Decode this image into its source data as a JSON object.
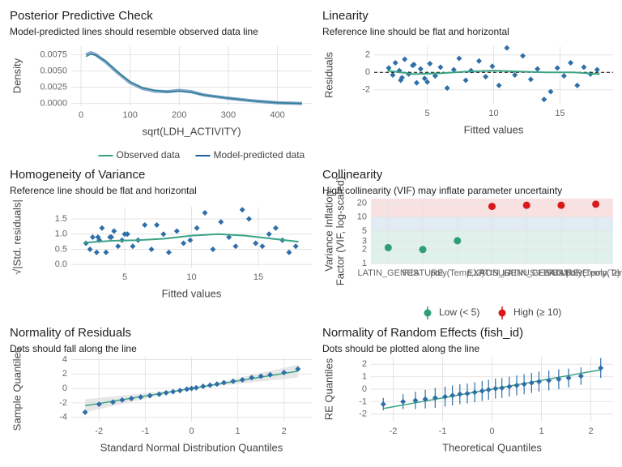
{
  "chart_data": [
    {
      "type": "line",
      "title": "Posterior Predictive Check",
      "subtitle": "Model-predicted lines should resemble observed data line",
      "xlabel": "sqrt(LDH_ACTIVITY)",
      "ylabel": "Density",
      "x": [
        10,
        20,
        30,
        50,
        75,
        100,
        125,
        150,
        175,
        200,
        225,
        250,
        300,
        350,
        400,
        450
      ],
      "series": [
        {
          "name": "Observed data",
          "color": "#3aa386",
          "values": [
            0.0072,
            0.0076,
            0.0074,
            0.0065,
            0.0048,
            0.0033,
            0.0024,
            0.002,
            0.0018,
            0.0019,
            0.0017,
            0.0013,
            0.0008,
            0.0004,
            0.0001,
            0
          ]
        },
        {
          "name": "Model-predicted data",
          "color": "#1f5fa0",
          "values": [
            0.0075,
            0.0078,
            0.0075,
            0.0064,
            0.0047,
            0.0032,
            0.0023,
            0.0019,
            0.0018,
            0.002,
            0.0018,
            0.0013,
            0.0008,
            0.0004,
            0.0001,
            0
          ]
        }
      ],
      "xlim": [
        -20,
        470
      ],
      "xticks": [
        0,
        100,
        200,
        300,
        400
      ],
      "ylim": [
        -0.0003,
        0.0088
      ],
      "yticks": [
        {
          "value": 0,
          "label": "0.0000"
        },
        {
          "value": 0.0025,
          "label": "0.0025"
        },
        {
          "value": 0.005,
          "label": "0.0050"
        },
        {
          "value": 0.0075,
          "label": "0.0075"
        }
      ],
      "grid": true
    },
    {
      "type": "scatter",
      "title": "Linearity",
      "subtitle": "Reference line should be flat and horizontal",
      "xlabel": "Fitted values",
      "ylabel": "Residuals",
      "points": {
        "color": "#2f6fa8",
        "x": [
          2.1,
          2.4,
          2.6,
          2.9,
          3.1,
          3.3,
          3.6,
          3.9,
          4.2,
          4.5,
          4.8,
          5.2,
          5.6,
          6.0,
          6.5,
          7.0,
          7.4,
          7.9,
          8.3,
          8.9,
          9.4,
          9.9,
          10.4,
          11.0,
          11.6,
          12.2,
          12.8,
          13.3,
          13.8,
          14.3,
          14.8,
          15.3,
          15.8,
          16.3,
          16.8,
          17.3,
          17.8,
          3.0,
          4.0,
          5.0
        ],
        "y": [
          0.5,
          -0.3,
          1.1,
          0.2,
          -0.6,
          1.5,
          -0.2,
          0.8,
          -1.2,
          0.4,
          -0.7,
          1.0,
          -0.4,
          0.6,
          -1.8,
          0.3,
          1.6,
          -0.9,
          0.2,
          1.3,
          -0.5,
          0.7,
          -1.5,
          2.8,
          -0.3,
          1.9,
          -0.8,
          0.4,
          -3.1,
          -2.2,
          0.5,
          -0.4,
          1.1,
          -1.5,
          0.6,
          -0.2,
          0.3,
          -0.9,
          0.9,
          -1.1
        ]
      },
      "smooth": {
        "color": "#3aa386",
        "x": [
          2,
          4,
          6,
          8,
          10,
          12,
          14,
          16,
          18
        ],
        "y": [
          0.2,
          -0.2,
          -0.1,
          0.1,
          0.2,
          0.1,
          0,
          0,
          -0.2
        ]
      },
      "reference_line": 0,
      "xlim": [
        1,
        19
      ],
      "xticks": [
        5,
        10,
        15
      ],
      "ylim": [
        -3.6,
        3
      ],
      "yticks": [
        -2,
        0,
        2
      ],
      "grid": true
    },
    {
      "type": "scatter",
      "title": "Homogeneity of Variance",
      "subtitle": "Reference line should be flat and horizontal",
      "xlabel": "Fitted values",
      "ylabel": "√|Std. residuals|",
      "points": {
        "color": "#2f6fa8",
        "x": [
          2.1,
          2.4,
          2.6,
          2.9,
          3.1,
          3.3,
          3.6,
          3.9,
          4.2,
          4.5,
          4.8,
          5.2,
          5.6,
          6.0,
          6.5,
          7.0,
          7.4,
          7.9,
          8.3,
          8.9,
          9.4,
          9.9,
          10.4,
          11.0,
          11.6,
          12.2,
          12.8,
          13.3,
          13.8,
          14.3,
          14.8,
          15.3,
          15.8,
          16.3,
          16.8,
          17.3,
          17.8,
          3.0,
          4.0,
          5.0
        ],
        "y": [
          0.7,
          0.5,
          0.9,
          0.4,
          0.8,
          1.2,
          0.4,
          0.9,
          1.1,
          0.6,
          0.8,
          1.0,
          0.6,
          0.8,
          1.3,
          0.5,
          1.3,
          1.0,
          0.4,
          1.1,
          0.7,
          0.8,
          1.2,
          1.7,
          0.5,
          1.4,
          0.9,
          0.6,
          1.8,
          1.5,
          0.7,
          0.6,
          1.0,
          1.2,
          0.8,
          0.4,
          0.6,
          0.9,
          0.9,
          1.0
        ]
      },
      "smooth": {
        "color": "#3aa386",
        "x": [
          2,
          4,
          6,
          8,
          10,
          12,
          14,
          16,
          18
        ],
        "y": [
          0.72,
          0.78,
          0.8,
          0.85,
          0.95,
          1.0,
          0.95,
          0.85,
          0.75
        ]
      },
      "xlim": [
        1,
        19
      ],
      "xticks": [
        5,
        10,
        15
      ],
      "ylim": [
        -0.1,
        1.9
      ],
      "yticks": [
        {
          "value": 0,
          "label": "0.0"
        },
        {
          "value": 0.5,
          "label": "0.5"
        },
        {
          "value": 1,
          "label": "1.0"
        },
        {
          "value": 1.5,
          "label": "1.5"
        }
      ],
      "grid": true
    },
    {
      "type": "dotplot",
      "title": "Collinearity",
      "subtitle": "High collinearity (VIF) may inflate parameter uncertainty",
      "ylabel": [
        "Variance Inflation",
        "Factor (VIF, log-scaled)"
      ],
      "categories": [
        "LATIN_GENUS",
        "FEATURE",
        "poly(Temp, 2)",
        "EXPOSURE",
        "LATIN_GENUS:FEATURE",
        "LATIN_GENUS:poly(Temp, 2)",
        "FEATURE:poly(Temp, 2)"
      ],
      "series": [
        {
          "name": "Low (< 5)",
          "color": "#2e9e7a",
          "values": [
            2.2,
            2.0,
            3.1,
            null,
            null,
            null,
            null
          ]
        },
        {
          "name": "High (≥ 10)",
          "color": "#d7191c",
          "values": [
            null,
            null,
            null,
            17,
            18,
            18,
            19
          ]
        }
      ],
      "zones": [
        {
          "to": 5,
          "color": "#d8eee6"
        },
        {
          "to": 10,
          "color": "#d8e6f0"
        },
        {
          "color": "#f7dada"
        }
      ],
      "log_y": true,
      "ylim": [
        1,
        25
      ],
      "yticks": [
        1,
        2,
        3,
        5,
        10,
        20
      ],
      "grid": true
    },
    {
      "type": "qq",
      "title": "Normality of Residuals",
      "subtitle": "Dots should fall along the line",
      "xlabel": "Standard Normal Distribution Quantiles",
      "ylabel": "Sample Quantiles",
      "points": {
        "color": "#2f6fa8",
        "x": [
          -2.3,
          -2.0,
          -1.7,
          -1.5,
          -1.3,
          -1.1,
          -0.9,
          -0.7,
          -0.55,
          -0.4,
          -0.25,
          -0.1,
          0,
          0.1,
          0.25,
          0.4,
          0.55,
          0.7,
          0.9,
          1.1,
          1.3,
          1.5,
          1.7,
          2.0,
          2.3
        ],
        "y": [
          -3.3,
          -2.2,
          -1.9,
          -1.6,
          -1.4,
          -1.2,
          -1.0,
          -0.8,
          -0.6,
          -0.45,
          -0.3,
          -0.1,
          0,
          0.1,
          0.3,
          0.45,
          0.6,
          0.8,
          1.0,
          1.2,
          1.5,
          1.7,
          1.9,
          2.2,
          2.7
        ]
      },
      "reference": {
        "color": "#3aa386",
        "x": [
          -2.3,
          2.3
        ],
        "y": [
          -2.4,
          2.4
        ]
      },
      "xlim": [
        -2.6,
        2.6
      ],
      "xticks": [
        -2,
        -1,
        0,
        1,
        2
      ],
      "ylim": [
        -4.6,
        4.4
      ],
      "yticks": [
        -4,
        -2,
        0,
        2,
        4
      ],
      "grid": true
    },
    {
      "type": "qq",
      "title": "Normality of Random Effects (fish_id)",
      "subtitle": "Dots should be plotted along the line",
      "xlabel": "Theoretical Quantiles",
      "ylabel": "RE Quantiles",
      "points": {
        "color": "#2f6fa8",
        "x": [
          -2.2,
          -1.8,
          -1.55,
          -1.35,
          -1.15,
          -0.95,
          -0.8,
          -0.65,
          -0.5,
          -0.35,
          -0.2,
          -0.07,
          0.07,
          0.2,
          0.35,
          0.5,
          0.65,
          0.8,
          0.95,
          1.15,
          1.35,
          1.55,
          1.8,
          2.2
        ],
        "y": [
          -1.2,
          -1.0,
          -0.9,
          -0.8,
          -0.7,
          -0.6,
          -0.5,
          -0.4,
          -0.35,
          -0.25,
          -0.15,
          -0.05,
          0.05,
          0.1,
          0.2,
          0.3,
          0.4,
          0.5,
          0.6,
          0.7,
          0.8,
          0.9,
          1.05,
          1.7
        ],
        "error": [
          0.5,
          0.6,
          0.7,
          0.75,
          0.8,
          0.8,
          0.8,
          0.8,
          0.8,
          0.8,
          0.8,
          0.8,
          0.8,
          0.8,
          0.8,
          0.8,
          0.8,
          0.8,
          0.8,
          0.8,
          0.8,
          0.75,
          0.7,
          0.8
        ]
      },
      "reference": {
        "color": "#3aa386",
        "x": [
          -2.2,
          2.2
        ],
        "y": [
          -1.55,
          1.55
        ]
      },
      "xlim": [
        -2.45,
        2.45
      ],
      "xticks": [
        -2,
        -1,
        0,
        1,
        2
      ],
      "ylim": [
        -2.6,
        2.6
      ],
      "yticks": [
        -2,
        -1,
        0,
        1,
        2
      ],
      "grid": true
    }
  ]
}
